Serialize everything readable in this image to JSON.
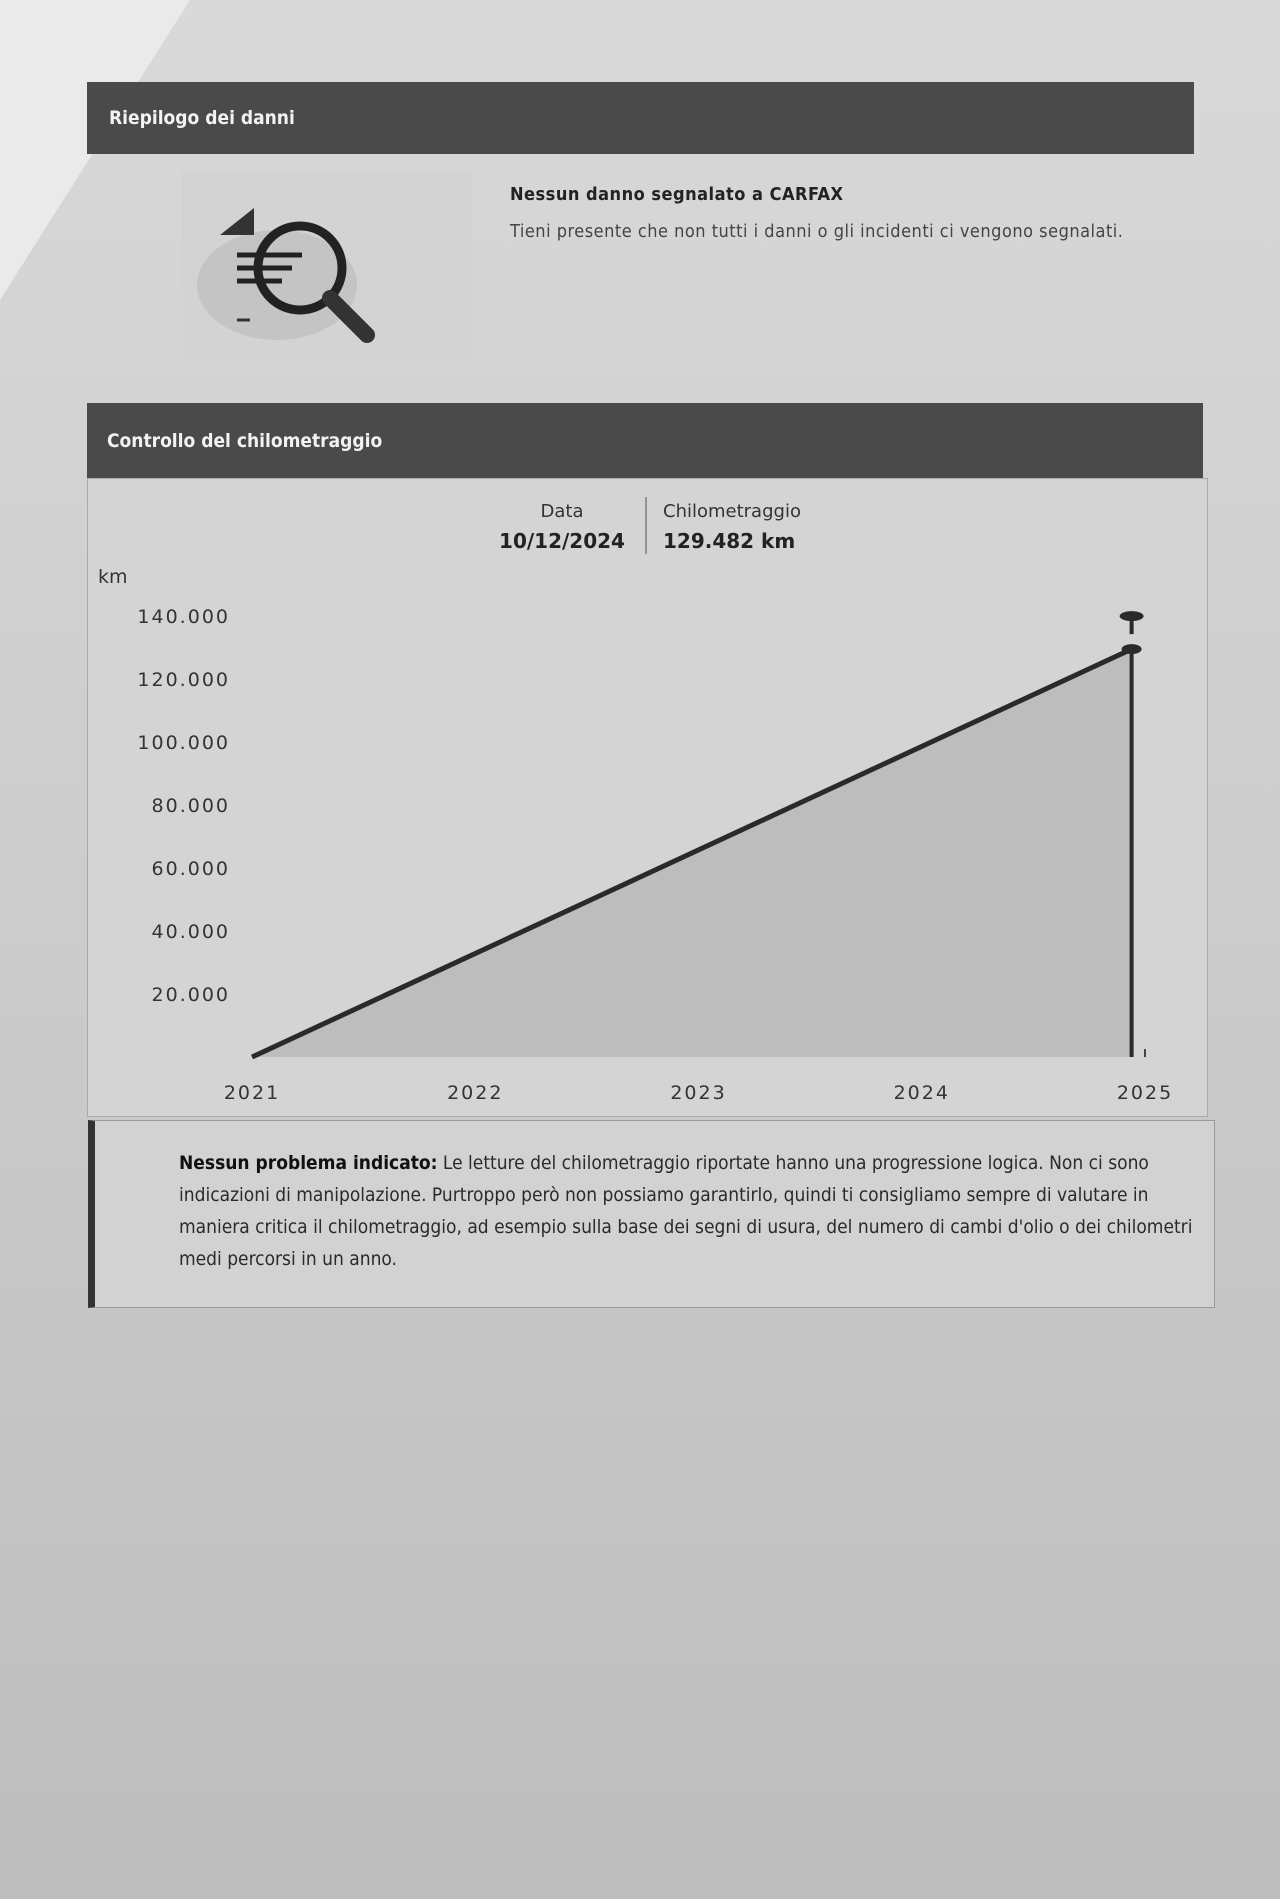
{
  "damage_summary": {
    "header": "Riepilogo dei danni",
    "icon": "magnifier-report-icon",
    "title": "Nessun danno segnalato a CARFAX",
    "text": "Tieni presente che non tutti i danni o gli incidenti ci vengono segnalati."
  },
  "mileage_check": {
    "header": "Controllo del chilometraggio",
    "tooltip": {
      "date_label": "Data",
      "date_value": "10/12/2024",
      "km_label": "Chilometraggio",
      "km_value": "129.482 km"
    },
    "note_bold": "Nessun problema indicato:",
    "note_text": " Le letture del chilometraggio riportate hanno una progressione logica. Non ci sono indicazioni di manipolazione. Purtroppo però non possiamo garantirlo, quindi ti consigliamo sempre di valutare in maniera critica il chilometraggio, ad esempio sulla base dei segni di usura, del numero di cambi d'olio o dei chilometri medi percorsi in un anno."
  },
  "chart_data": {
    "type": "area",
    "title": "",
    "xlabel": "",
    "ylabel": "km",
    "x_ticks": [
      "2021",
      "2022",
      "2023",
      "2024",
      "2025"
    ],
    "y_ticks": [
      "20.000",
      "40.000",
      "60.000",
      "80.000",
      "100.000",
      "120.000",
      "140.000"
    ],
    "ylim": [
      0,
      140000
    ],
    "xlim": [
      2021,
      2025
    ],
    "grid": false,
    "series": [
      {
        "points": [
          {
            "x": 2021.0,
            "y": 0
          },
          {
            "x": 2024.94,
            "y": 129482
          }
        ]
      }
    ],
    "marker": {
      "date": "10/12/2024",
      "km": 129482
    },
    "colors": {
      "line": "#2a2a2a",
      "fill": "#bdbdbd",
      "marker": "#2a2a2a"
    }
  }
}
